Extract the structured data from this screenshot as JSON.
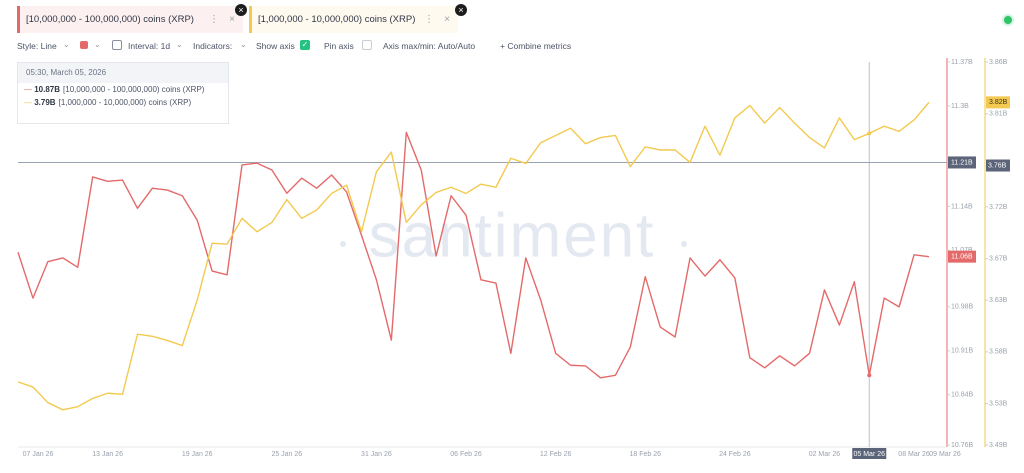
{
  "toolbar": {
    "style": "Style: Line",
    "interval": "Interval: 1d",
    "indicators": "Indicators:",
    "show_axis": "Show axis",
    "pin_axis": "Pin axis",
    "axis_minmax": "Axis max/min: Auto/Auto",
    "combine": "+ Combine metrics"
  },
  "watermark": "santiment",
  "tooltip": {
    "date": "05:30, March 05, 2026"
  },
  "chart_data": {
    "type": "line",
    "categories": [
      "07 Jan 26",
      null,
      null,
      null,
      null,
      null,
      "13 Jan 26",
      null,
      null,
      null,
      null,
      null,
      "19 Jan 26",
      null,
      null,
      null,
      null,
      null,
      "25 Jan 26",
      null,
      null,
      null,
      null,
      null,
      "31 Jan 26",
      null,
      null,
      null,
      null,
      null,
      "06 Feb 26",
      null,
      null,
      null,
      null,
      null,
      "12 Feb 26",
      null,
      null,
      null,
      null,
      null,
      "18 Feb 26",
      null,
      null,
      null,
      null,
      null,
      "24 Feb 26",
      null,
      null,
      null,
      null,
      null,
      "02 Mar 26",
      null,
      null,
      "05 Mar 26",
      null,
      null,
      "08 Mar 26",
      "09 Mar 26"
    ],
    "series": [
      {
        "name": "[10,000,000 - 100,000,000) coins (XRP)",
        "color": "#e46a6a",
        "values": [
          11.067,
          10.994,
          11.052,
          11.058,
          11.043,
          11.187,
          11.18,
          11.182,
          11.137,
          11.169,
          11.166,
          11.157,
          11.118,
          11.037,
          11.031,
          11.206,
          11.209,
          11.198,
          11.161,
          11.185,
          11.169,
          11.19,
          11.163,
          11.094,
          11.023,
          10.927,
          11.258,
          11.198,
          11.061,
          11.157,
          11.126,
          11.023,
          11.018,
          10.906,
          11.058,
          10.991,
          10.906,
          10.887,
          10.886,
          10.867,
          10.871,
          10.916,
          11.028,
          10.948,
          10.932,
          11.058,
          11.029,
          11.055,
          11.026,
          10.899,
          10.883,
          10.902,
          10.886,
          10.906,
          11.007,
          10.951,
          11.02,
          10.871,
          10.994,
          10.98,
          11.063,
          11.06
        ],
        "value_labels": [
          null,
          null,
          null,
          null,
          null,
          null,
          null,
          null,
          null,
          null,
          null,
          null,
          null,
          null,
          null,
          null,
          null,
          null,
          null,
          null,
          null,
          null,
          null,
          null,
          null,
          null,
          null,
          null,
          null,
          null,
          null,
          null,
          null,
          null,
          null,
          null,
          null,
          null,
          null,
          null,
          null,
          null,
          null,
          null,
          null,
          null,
          null,
          null,
          null,
          null,
          null,
          null,
          null,
          null,
          null,
          null,
          null,
          "10.87B",
          null,
          null,
          null,
          "11.06B"
        ]
      },
      {
        "name": "[1,000,000 - 10,000,000) coins (XRP)",
        "color": "#f3c94f",
        "axis": "y2",
        "values": [
          3.551,
          3.546,
          3.531,
          3.524,
          3.527,
          3.535,
          3.54,
          3.539,
          3.597,
          3.595,
          3.591,
          3.586,
          3.63,
          3.685,
          3.684,
          3.709,
          3.696,
          3.705,
          3.727,
          3.709,
          3.717,
          3.733,
          3.741,
          3.696,
          3.754,
          3.773,
          3.705,
          3.722,
          3.734,
          3.739,
          3.733,
          3.742,
          3.739,
          3.767,
          3.762,
          3.782,
          3.789,
          3.796,
          3.781,
          3.787,
          3.789,
          3.759,
          3.778,
          3.775,
          3.775,
          3.763,
          3.798,
          3.77,
          3.806,
          3.818,
          3.801,
          3.816,
          3.801,
          3.787,
          3.777,
          3.806,
          3.785,
          3.791,
          3.798,
          3.793,
          3.804,
          3.821
        ],
        "value_labels": [
          null,
          null,
          null,
          null,
          null,
          null,
          null,
          null,
          null,
          null,
          null,
          null,
          null,
          null,
          null,
          null,
          null,
          null,
          null,
          null,
          null,
          null,
          null,
          null,
          null,
          null,
          null,
          null,
          null,
          null,
          null,
          null,
          null,
          null,
          null,
          null,
          null,
          null,
          null,
          null,
          null,
          null,
          null,
          null,
          null,
          null,
          null,
          null,
          null,
          null,
          null,
          null,
          null,
          null,
          null,
          null,
          null,
          "3.79B",
          null,
          null,
          null,
          "3.82B"
        ]
      }
    ],
    "ylim": [
      10.76,
      11.37
    ],
    "yticks": [
      {
        "value": 11.37,
        "label": "11.37B"
      },
      {
        "value": 11.3,
        "label": "11.3B"
      },
      {
        "value": 11.14,
        "label": "11.14B"
      },
      {
        "value": 11.07,
        "label": "11.07B"
      },
      {
        "value": 10.98,
        "label": "10.98B"
      },
      {
        "value": 10.91,
        "label": "10.91B"
      },
      {
        "value": 10.84,
        "label": "10.84B"
      },
      {
        "value": 10.76,
        "label": "10.76B"
      }
    ],
    "y2lim": [
      3.49,
      3.86
    ],
    "y2ticks": [
      {
        "value": 3.86,
        "label": "3.86B"
      },
      {
        "value": 3.81,
        "label": "3.81B"
      },
      {
        "value": 3.72,
        "label": "3.72B"
      },
      {
        "value": 3.67,
        "label": "3.67B"
      },
      {
        "value": 3.63,
        "label": "3.63B"
      },
      {
        "value": 3.58,
        "label": "3.58B"
      },
      {
        "value": 3.53,
        "label": "3.53B"
      },
      {
        "value": 3.49,
        "label": "3.49B"
      }
    ],
    "grid": false,
    "crosshair": {
      "x": "05 Mar 26",
      "y": {
        "value": 11.21,
        "label": "11.21B"
      },
      "y2": {
        "value": 3.76,
        "label": "3.76B"
      }
    }
  }
}
